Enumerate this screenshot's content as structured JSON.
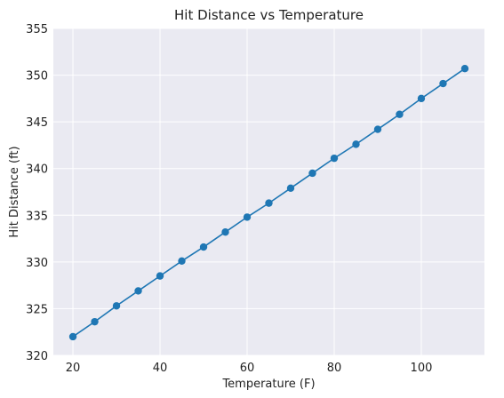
{
  "chart_data": {
    "type": "line",
    "title": "Hit Distance vs Temperature",
    "xlabel": "Temperature (F)",
    "ylabel": "Hit Distance (ft)",
    "xlim": [
      15.5,
      114.5
    ],
    "ylim": [
      320,
      355
    ],
    "xticks": [
      20,
      40,
      60,
      80,
      100
    ],
    "yticks": [
      320,
      325,
      330,
      335,
      340,
      345,
      350,
      355
    ],
    "grid": true,
    "markers": true,
    "series": [
      {
        "x": [
          20,
          25,
          30,
          35,
          40,
          45,
          50,
          55,
          60,
          65,
          70,
          75,
          80,
          85,
          90,
          95,
          100,
          105,
          110
        ],
        "values": [
          322.0,
          323.6,
          325.3,
          326.9,
          328.5,
          330.1,
          331.6,
          333.2,
          334.8,
          336.3,
          337.9,
          339.5,
          341.1,
          342.6,
          344.2,
          345.8,
          347.5,
          349.1,
          350.7
        ]
      }
    ],
    "colors": {
      "background": "#eaeaf2",
      "grid": "#ffffff",
      "line": "#1f77b4"
    }
  }
}
